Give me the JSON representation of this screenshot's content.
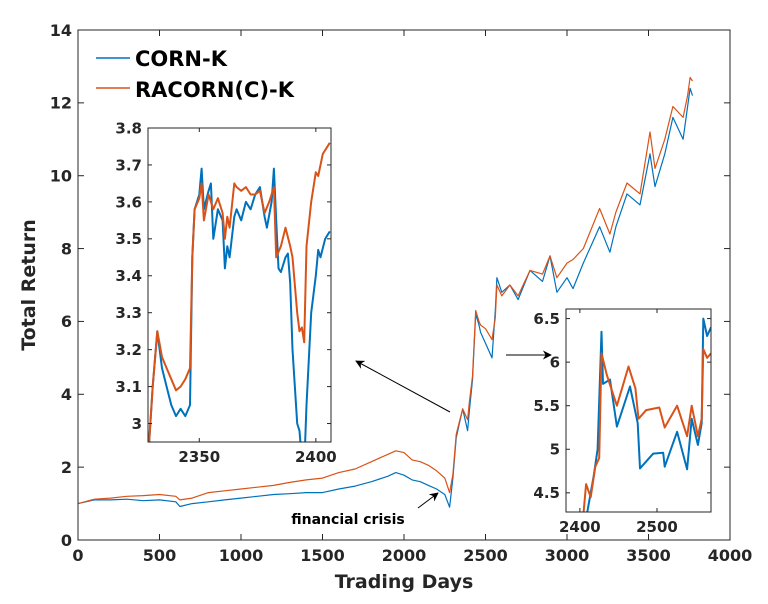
{
  "chart_data": [
    {
      "id": "main",
      "type": "line",
      "xlabel": "Trading Days",
      "ylabel": "Total Return",
      "xlim": [
        0,
        4000
      ],
      "ylim": [
        0,
        14
      ],
      "xticks": [
        0,
        500,
        1000,
        1500,
        2000,
        2500,
        3000,
        3500,
        4000
      ],
      "yticks": [
        0,
        2,
        4,
        6,
        8,
        10,
        12,
        14
      ],
      "grid": false,
      "legend": "top-left",
      "annotation": "financial crisis",
      "series": [
        {
          "name": "CORN-K",
          "color": "#0072BD",
          "x": [
            0,
            100,
            200,
            300,
            400,
            500,
            600,
            625,
            700,
            800,
            900,
            1000,
            1100,
            1200,
            1300,
            1400,
            1500,
            1600,
            1700,
            1800,
            1900,
            1950,
            2000,
            2050,
            2100,
            2150,
            2200,
            2250,
            2280,
            2300,
            2320,
            2340,
            2360,
            2390,
            2400,
            2420,
            2440,
            2460,
            2470,
            2500,
            2540,
            2560,
            2570,
            2600,
            2650,
            2700,
            2773,
            2850,
            2896,
            2938,
            3000,
            3037,
            3100,
            3200,
            3263,
            3300,
            3368,
            3448,
            3509,
            3540,
            3600,
            3650,
            3712,
            3740,
            3755,
            3770
          ],
          "y": [
            1.0,
            1.1,
            1.1,
            1.12,
            1.08,
            1.1,
            1.05,
            0.92,
            1.0,
            1.05,
            1.1,
            1.15,
            1.2,
            1.25,
            1.27,
            1.3,
            1.3,
            1.4,
            1.48,
            1.6,
            1.75,
            1.85,
            1.78,
            1.65,
            1.6,
            1.5,
            1.4,
            1.25,
            0.9,
            1.7,
            2.8,
            3.2,
            3.6,
            3.0,
            3.5,
            4.4,
            6.2,
            5.9,
            5.7,
            5.4,
            5.0,
            6.3,
            7.2,
            6.8,
            7.0,
            6.6,
            7.4,
            7.1,
            7.8,
            6.8,
            7.2,
            6.9,
            7.6,
            8.6,
            7.9,
            8.6,
            9.5,
            9.2,
            10.6,
            9.7,
            10.6,
            11.6,
            11.0,
            11.9,
            12.4,
            12.2
          ]
        },
        {
          "name": "RACORN(C)-K",
          "color": "#D95319",
          "x": [
            0,
            100,
            200,
            300,
            400,
            500,
            600,
            625,
            700,
            800,
            900,
            1000,
            1100,
            1200,
            1300,
            1400,
            1500,
            1600,
            1700,
            1800,
            1900,
            1950,
            2000,
            2050,
            2100,
            2150,
            2200,
            2250,
            2280,
            2300,
            2320,
            2340,
            2360,
            2390,
            2400,
            2420,
            2440,
            2460,
            2470,
            2500,
            2540,
            2560,
            2570,
            2600,
            2650,
            2700,
            2773,
            2850,
            2896,
            2938,
            3000,
            3037,
            3100,
            3200,
            3263,
            3300,
            3368,
            3448,
            3509,
            3540,
            3600,
            3650,
            3712,
            3740,
            3755,
            3770
          ],
          "y": [
            1.0,
            1.12,
            1.15,
            1.2,
            1.22,
            1.25,
            1.2,
            1.1,
            1.15,
            1.3,
            1.35,
            1.4,
            1.45,
            1.5,
            1.58,
            1.65,
            1.7,
            1.85,
            1.95,
            2.15,
            2.35,
            2.45,
            2.4,
            2.2,
            2.15,
            2.05,
            1.9,
            1.7,
            1.3,
            1.8,
            2.9,
            3.25,
            3.6,
            3.3,
            3.75,
            4.5,
            6.3,
            6.0,
            5.9,
            5.8,
            5.5,
            6.1,
            7.0,
            6.7,
            7.0,
            6.7,
            7.4,
            7.3,
            7.8,
            7.2,
            7.6,
            7.7,
            8.0,
            9.1,
            8.4,
            9.0,
            9.8,
            9.5,
            11.2,
            10.2,
            11.0,
            11.9,
            11.6,
            12.2,
            12.7,
            12.6
          ]
        }
      ]
    },
    {
      "id": "inset-1",
      "type": "line",
      "xlim": [
        2328,
        2406.5
      ],
      "ylim": [
        2.95,
        3.8
      ],
      "xticks": [
        2350,
        2400
      ],
      "yticks": [
        3,
        3.1,
        3.2,
        3.3,
        3.4,
        3.5,
        3.6,
        3.7,
        3.8
      ],
      "ytick_labels": [
        "3",
        "3.1",
        "3.2",
        "3.3",
        "3.4",
        "3.5",
        "3.6",
        "3.7",
        "3.8"
      ],
      "series": [
        {
          "color": "#0072BD",
          "x": [
            2328,
            2330,
            2332,
            2334,
            2336,
            2338,
            2340,
            2342,
            2344,
            2346,
            2347,
            2348,
            2350,
            2351,
            2352,
            2354,
            2355,
            2356,
            2358,
            2360,
            2361,
            2362,
            2363,
            2365,
            2366,
            2368,
            2370,
            2372,
            2374,
            2376,
            2378,
            2379,
            2381,
            2382,
            2383,
            2384,
            2385,
            2387,
            2388,
            2389,
            2390,
            2392,
            2393,
            2394,
            2395,
            2396,
            2398,
            2400,
            2401,
            2402,
            2404,
            2406
          ],
          "y": [
            2.9,
            3.1,
            3.25,
            3.15,
            3.1,
            3.05,
            3.02,
            3.04,
            3.02,
            3.05,
            3.45,
            3.58,
            3.62,
            3.69,
            3.58,
            3.63,
            3.65,
            3.5,
            3.58,
            3.55,
            3.42,
            3.48,
            3.45,
            3.56,
            3.58,
            3.55,
            3.6,
            3.58,
            3.62,
            3.64,
            3.56,
            3.53,
            3.6,
            3.69,
            3.55,
            3.42,
            3.41,
            3.45,
            3.46,
            3.38,
            3.2,
            3.0,
            2.98,
            2.9,
            2.88,
            3.05,
            3.3,
            3.4,
            3.47,
            3.45,
            3.5,
            3.52
          ]
        },
        {
          "color": "#D95319",
          "x": [
            2328,
            2330,
            2332,
            2334,
            2336,
            2338,
            2340,
            2342,
            2344,
            2346,
            2347,
            2348,
            2350,
            2351,
            2352,
            2354,
            2356,
            2358,
            2360,
            2361,
            2362,
            2363,
            2365,
            2366,
            2368,
            2370,
            2372,
            2374,
            2376,
            2378,
            2380,
            2382,
            2383,
            2385,
            2387,
            2389,
            2390,
            2392,
            2393,
            2394,
            2395,
            2396,
            2398,
            2400,
            2401,
            2403,
            2406
          ],
          "y": [
            2.9,
            3.1,
            3.25,
            3.18,
            3.15,
            3.12,
            3.09,
            3.1,
            3.12,
            3.15,
            3.45,
            3.58,
            3.61,
            3.65,
            3.55,
            3.62,
            3.58,
            3.61,
            3.57,
            3.5,
            3.56,
            3.53,
            3.65,
            3.64,
            3.63,
            3.64,
            3.62,
            3.62,
            3.63,
            3.57,
            3.6,
            3.64,
            3.45,
            3.48,
            3.53,
            3.48,
            3.45,
            3.3,
            3.25,
            3.26,
            3.22,
            3.48,
            3.6,
            3.68,
            3.67,
            3.73,
            3.76
          ]
        }
      ]
    },
    {
      "id": "inset-2",
      "type": "line",
      "xlim": [
        2382,
        2570
      ],
      "ylim": [
        4.28,
        6.61
      ],
      "xticks": [
        2400,
        2500
      ],
      "yticks": [
        4.5,
        5,
        5.5,
        6,
        6.5
      ],
      "ytick_labels": [
        "4.5",
        "5",
        "5.5",
        "6",
        "6.5"
      ],
      "series": [
        {
          "color": "#0072BD",
          "x": [
            2405,
            2410,
            2418,
            2423,
            2428,
            2430,
            2439,
            2448,
            2465,
            2475,
            2478,
            2495,
            2508,
            2510,
            2526,
            2539,
            2545,
            2553,
            2558,
            2560,
            2565,
            2570
          ],
          "y": [
            4.1,
            4.3,
            4.7,
            5.0,
            6.35,
            5.75,
            5.8,
            5.26,
            5.72,
            5.3,
            4.78,
            4.95,
            4.96,
            4.8,
            5.2,
            4.77,
            5.35,
            5.05,
            5.3,
            6.5,
            6.3,
            6.4
          ]
        },
        {
          "color": "#D95319",
          "x": [
            2403,
            2408,
            2414,
            2420,
            2425,
            2428,
            2435,
            2448,
            2463,
            2472,
            2476,
            2486,
            2503,
            2510,
            2526,
            2539,
            2545,
            2553,
            2558,
            2560,
            2565,
            2570
          ],
          "y": [
            4.1,
            4.6,
            4.45,
            4.8,
            4.9,
            6.1,
            5.85,
            5.5,
            5.95,
            5.7,
            5.35,
            5.45,
            5.48,
            5.25,
            5.5,
            5.15,
            5.5,
            5.15,
            5.35,
            6.15,
            6.05,
            6.1
          ]
        }
      ]
    }
  ]
}
